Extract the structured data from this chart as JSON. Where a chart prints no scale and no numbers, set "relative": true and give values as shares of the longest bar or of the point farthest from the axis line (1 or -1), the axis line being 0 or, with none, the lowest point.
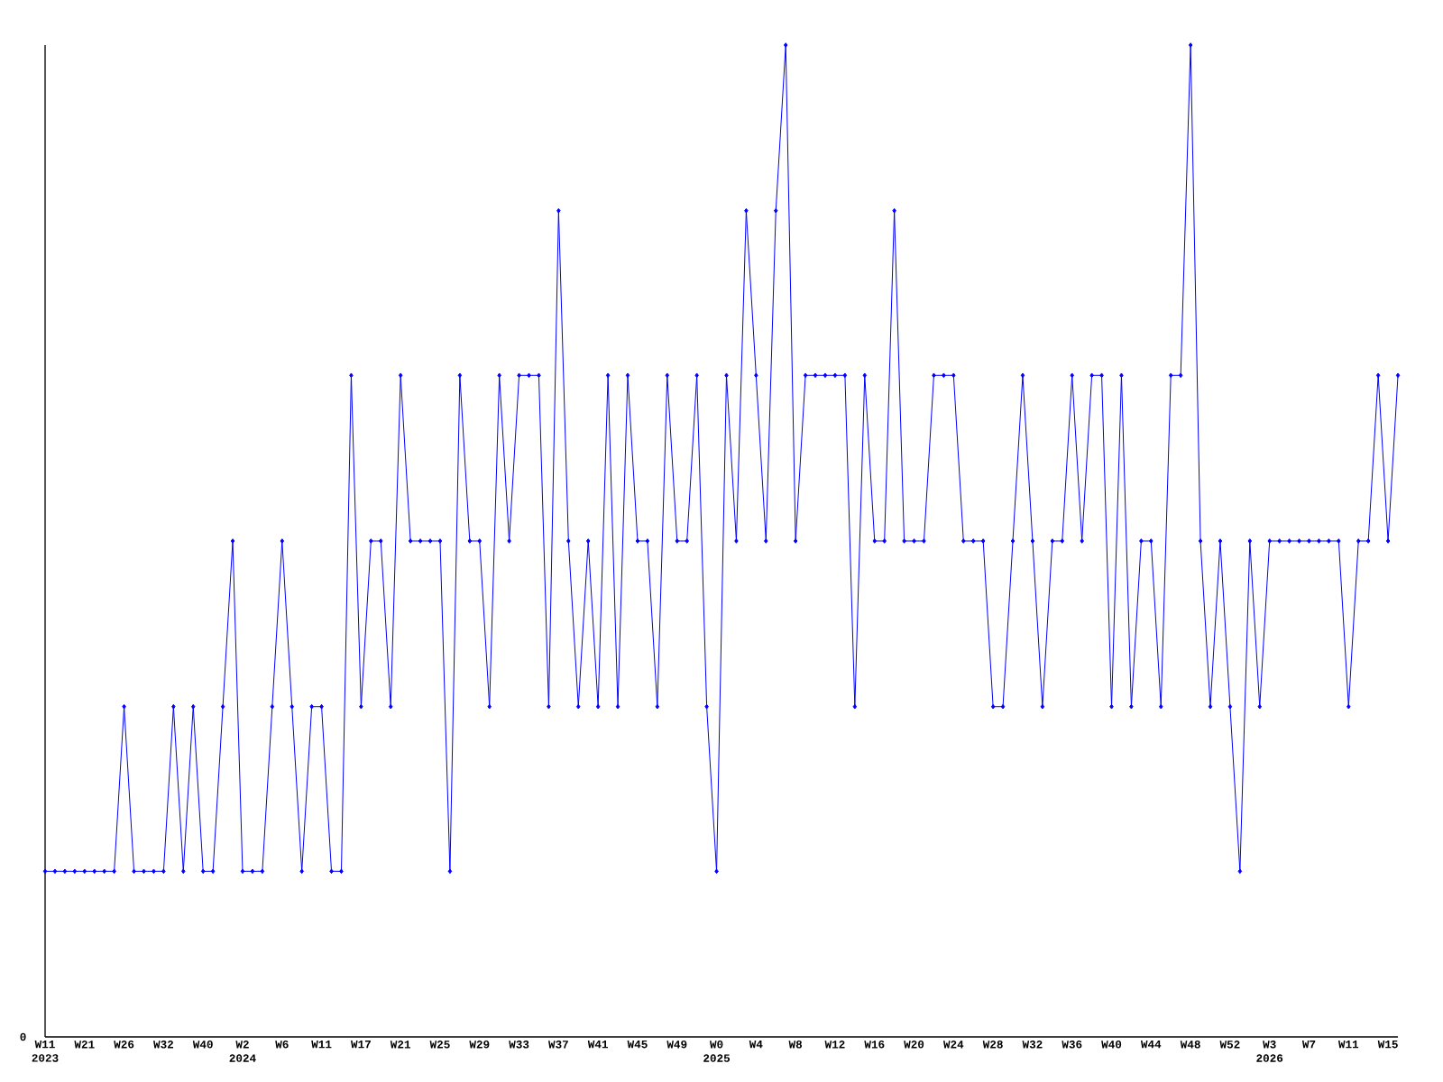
{
  "chart_data": {
    "type": "line",
    "relative": true,
    "color": "#0000ff",
    "marker": "diamond",
    "annotations": [
      "0"
    ],
    "categories": [
      "W11 2023",
      null,
      null,
      null,
      "W21",
      null,
      null,
      null,
      "W26",
      null,
      null,
      null,
      "W32",
      null,
      null,
      null,
      "W40",
      null,
      null,
      null,
      "W2 2024",
      null,
      null,
      null,
      "W6",
      null,
      null,
      null,
      "W11",
      null,
      null,
      null,
      "W17",
      null,
      null,
      null,
      "W21",
      null,
      null,
      null,
      "W25",
      null,
      null,
      null,
      "W29",
      null,
      null,
      null,
      "W33",
      null,
      null,
      null,
      "W37",
      null,
      null,
      null,
      "W41",
      null,
      null,
      null,
      "W45",
      null,
      null,
      null,
      "W49",
      null,
      null,
      null,
      "W0 2025",
      null,
      null,
      null,
      "W4",
      null,
      null,
      null,
      "W8",
      null,
      null,
      null,
      "W12",
      null,
      null,
      null,
      "W16",
      null,
      null,
      null,
      "W20",
      null,
      null,
      null,
      "W24",
      null,
      null,
      null,
      "W28",
      null,
      null,
      null,
      "W32",
      null,
      null,
      null,
      "W36",
      null,
      null,
      null,
      "W40",
      null,
      null,
      null,
      "W44",
      null,
      null,
      null,
      "W48",
      null,
      null,
      null,
      "W52",
      null,
      null,
      null,
      "W3 2026",
      null,
      null,
      null,
      "W7",
      null,
      null,
      null,
      "W11",
      null,
      null,
      null,
      "W15",
      null
    ],
    "values": [
      0.167,
      0.167,
      0.167,
      0.167,
      0.167,
      0.167,
      0.167,
      0.167,
      0.333,
      0.167,
      0.167,
      0.167,
      0.167,
      0.333,
      0.167,
      0.333,
      0.167,
      0.167,
      0.333,
      0.5,
      0.167,
      0.167,
      0.167,
      0.333,
      0.5,
      0.333,
      0.167,
      0.333,
      0.333,
      0.167,
      0.167,
      0.667,
      0.333,
      0.5,
      0.5,
      0.333,
      0.667,
      0.5,
      0.5,
      0.5,
      0.5,
      0.167,
      0.667,
      0.5,
      0.5,
      0.333,
      0.667,
      0.5,
      0.667,
      0.667,
      0.667,
      0.333,
      0.833,
      0.5,
      0.333,
      0.5,
      0.333,
      0.667,
      0.333,
      0.667,
      0.5,
      0.5,
      0.333,
      0.667,
      0.5,
      0.5,
      0.667,
      0.333,
      0.167,
      0.667,
      0.5,
      0.833,
      0.667,
      0.5,
      0.833,
      1,
      0.5,
      0.667,
      0.667,
      0.667,
      0.667,
      0.667,
      0.333,
      0.667,
      0.5,
      0.5,
      0.833,
      0.5,
      0.5,
      0.5,
      0.667,
      0.667,
      0.667,
      0.5,
      0.5,
      0.5,
      0.333,
      0.333,
      0.5,
      0.667,
      0.5,
      0.333,
      0.5,
      0.5,
      0.667,
      0.5,
      0.667,
      0.667,
      0.333,
      0.667,
      0.333,
      0.5,
      0.5,
      0.333,
      0.667,
      0.667,
      1,
      0.5,
      0.333,
      0.5,
      0.333,
      0.167,
      0.5,
      0.333,
      0.5,
      0.5,
      0.5,
      0.5,
      0.5,
      0.5,
      0.5,
      0.5,
      0.333,
      0.5,
      0.5,
      0.667,
      0.5,
      0.667
    ]
  }
}
